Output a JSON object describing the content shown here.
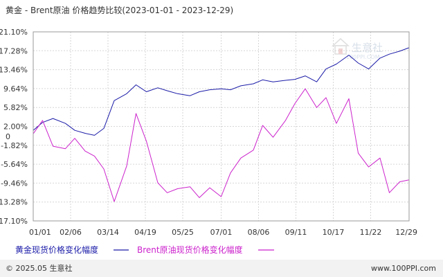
{
  "chart_data": {
    "type": "line",
    "title": "黄金 - Brent原油 价格趋势比较(2023-01-01 - 2023-12-29)",
    "y_ticks": [
      "21.10%",
      "17.28%",
      "13.46%",
      "9.64%",
      "5.82%",
      "2.00%",
      "-1.82%",
      "-5.64%",
      "-9.46%",
      "-13.28%",
      "-17.10%"
    ],
    "y_tick_values": [
      21.1,
      17.28,
      13.46,
      9.64,
      5.82,
      2.0,
      -1.82,
      -5.64,
      -9.46,
      -13.28,
      -17.1
    ],
    "ylim": [
      -17.1,
      21.1
    ],
    "y_zero_label": "0",
    "x_ticks": [
      "01/01",
      "02/06",
      "03/14",
      "04/19",
      "05/25",
      "07/01",
      "08/06",
      "09/11",
      "10/17",
      "11/22",
      "12/29"
    ],
    "x_tick_dates": [
      "2023-01-01",
      "2023-02-06",
      "2023-03-14",
      "2023-04-19",
      "2023-05-25",
      "2023-07-01",
      "2023-08-06",
      "2023-09-11",
      "2023-10-17",
      "2023-11-22",
      "2023-12-29"
    ],
    "x": [
      "2023-01-01",
      "2023-01-10",
      "2023-01-20",
      "2023-02-01",
      "2023-02-10",
      "2023-02-20",
      "2023-03-01",
      "2023-03-10",
      "2023-03-20",
      "2023-04-01",
      "2023-04-10",
      "2023-04-20",
      "2023-05-01",
      "2023-05-10",
      "2023-05-20",
      "2023-06-01",
      "2023-06-10",
      "2023-06-20",
      "2023-07-01",
      "2023-07-10",
      "2023-07-20",
      "2023-08-01",
      "2023-08-10",
      "2023-08-20",
      "2023-09-01",
      "2023-09-10",
      "2023-09-20",
      "2023-10-01",
      "2023-10-10",
      "2023-10-20",
      "2023-11-01",
      "2023-11-10",
      "2023-11-20",
      "2023-12-01",
      "2023-12-10",
      "2023-12-20",
      "2023-12-29"
    ],
    "series": [
      {
        "name": "黄金现货价格变化幅度",
        "color": "#1a1aa8",
        "values": [
          1.2,
          2.8,
          3.6,
          2.6,
          1.2,
          0.6,
          0.2,
          1.6,
          7.2,
          8.6,
          10.4,
          9.0,
          9.8,
          9.2,
          8.6,
          8.2,
          9.0,
          9.4,
          9.6,
          9.4,
          10.2,
          10.6,
          11.4,
          11.0,
          11.3,
          11.5,
          12.2,
          11.0,
          13.6,
          14.6,
          16.4,
          14.8,
          13.6,
          15.8,
          16.6,
          17.2,
          17.9
        ]
      },
      {
        "name": "Brent原油现货价格变化幅度",
        "color": "#cc22cc",
        "values": [
          0.5,
          3.2,
          -2.0,
          -2.5,
          -0.4,
          -3.0,
          -4.0,
          -6.6,
          -13.2,
          -6.0,
          4.6,
          -1.0,
          -9.4,
          -11.4,
          -10.6,
          -10.2,
          -12.4,
          -10.4,
          -12.2,
          -7.4,
          -4.4,
          -2.8,
          2.2,
          -0.2,
          3.2,
          6.6,
          9.6,
          5.8,
          7.8,
          2.6,
          7.6,
          -3.4,
          -6.2,
          -4.4,
          -11.4,
          -9.2,
          -8.8
        ]
      }
    ],
    "legend": [
      {
        "label": "黄金现货价格变化幅度",
        "color": "#1a1aa8"
      },
      {
        "label": "Brent原油现货价格变化幅度",
        "color": "#cc22cc"
      }
    ],
    "legend_position": "bottom-left",
    "grid": true,
    "colors": {
      "axis_text": "#333333",
      "grid": "#d6d6d6",
      "title": "#333333",
      "footer_bg": "#f2f2f2"
    }
  },
  "watermark": {
    "text": "生意社",
    "sub": "100PPI.COM"
  },
  "footer": {
    "left": "© 2025.05 生意社",
    "right": "www.100PPI.com"
  }
}
